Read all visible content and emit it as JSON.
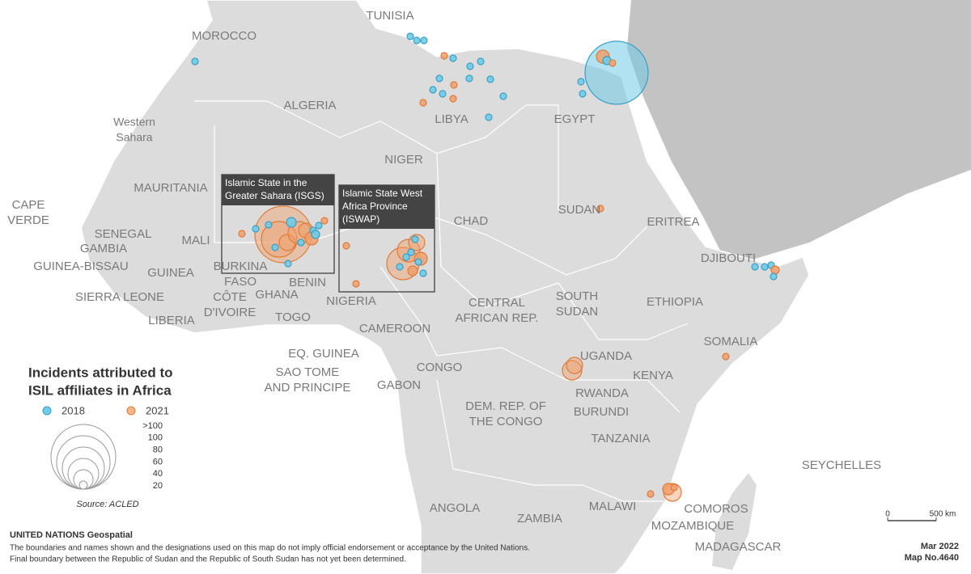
{
  "countries": [
    [
      "MOROCCO"
    ],
    [
      "TUNISIA"
    ],
    [
      "ALGERIA"
    ],
    [
      "LIBYA"
    ],
    [
      "EGYPT"
    ],
    [
      "Western",
      "Sahara"
    ],
    [
      "NIGER"
    ],
    [
      "MAURITANIA"
    ],
    [
      "CAPE",
      "VERDE"
    ],
    [
      "SENEGAL"
    ],
    [
      "GAMBIA"
    ],
    [
      "MALI"
    ],
    [
      "GUINEA-BISSAU"
    ],
    [
      "GUINEA"
    ],
    [
      "BURKINA",
      "FASO"
    ],
    [
      "CHAD"
    ],
    [
      "SUDAN"
    ],
    [
      "ERITREA"
    ],
    [
      "DJIBOUTI"
    ],
    [
      "SIERRA LEONE"
    ],
    [
      "CÔTE",
      "D'IVOIRE"
    ],
    [
      "GHANA"
    ],
    [
      "BENIN"
    ],
    [
      "TOGO"
    ],
    [
      "LIBERIA"
    ],
    [
      "NIGERIA"
    ],
    [
      "CENTRAL",
      "AFRICAN REP."
    ],
    [
      "SOUTH",
      "SUDAN"
    ],
    [
      "ETHIOPIA"
    ],
    [
      "CAMEROON"
    ],
    [
      "SOMALIA"
    ],
    [
      "EQ. GUINEA"
    ],
    [
      "UGANDA"
    ],
    [
      "SAO TOME",
      "AND PRINCIPE"
    ],
    [
      "CONGO"
    ],
    [
      "KENYA"
    ],
    [
      "GABON"
    ],
    [
      "RWANDA"
    ],
    [
      "DEM. REP. OF",
      "THE CONGO"
    ],
    [
      "BURUNDI"
    ],
    [
      "TANZANIA"
    ],
    [
      "SEYCHELLES"
    ],
    [
      "ANGOLA"
    ],
    [
      "ZAMBIA"
    ],
    [
      "MALAWI"
    ],
    [
      "COMOROS"
    ],
    [
      "MOZAMBIQUE"
    ],
    [
      "MADAGASCAR"
    ]
  ],
  "boxes": [
    [
      "Islamic State in the",
      "Greater Sahara (ISGS)"
    ],
    [
      "Islamic State West",
      "Africa Province",
      "(ISWAP)"
    ]
  ],
  "legend": {
    "title": [
      "Incidents attributed to",
      "ISIL affiliates in Africa"
    ],
    "series": [
      "2018",
      "2021"
    ],
    "sizes": [
      ">100",
      "100",
      "80",
      "60",
      "40",
      "20"
    ],
    "source": "Source: ACLED"
  },
  "scale": {
    "start": "0",
    "end": "500 km"
  },
  "footer": {
    "org": "UNITED NATIONS Geospatial",
    "disclaimer": [
      "The boundaries and names shown and the designations used on this map do not imply official endorsement or acceptance by the United Nations.",
      "Final boundary between the Republic of Sudan and the Republic of South Sudan has not yet been determined."
    ],
    "date": "Mar 2022",
    "map_no": "Map No.4640"
  }
}
